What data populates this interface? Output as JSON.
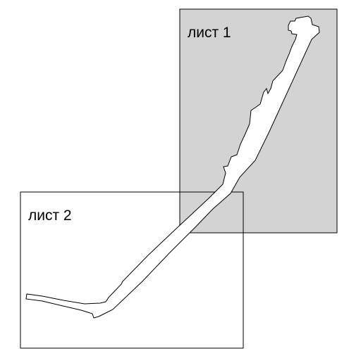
{
  "sheets": [
    {
      "label": "лист 1",
      "shaded": true
    },
    {
      "label": "лист 2",
      "shaded": false
    }
  ],
  "colors": {
    "sheet_fill_shaded": "#d3d3d3",
    "sheet_fill_plain": "#ffffff",
    "stroke": "#000000",
    "road_fill": "#ffffff"
  }
}
